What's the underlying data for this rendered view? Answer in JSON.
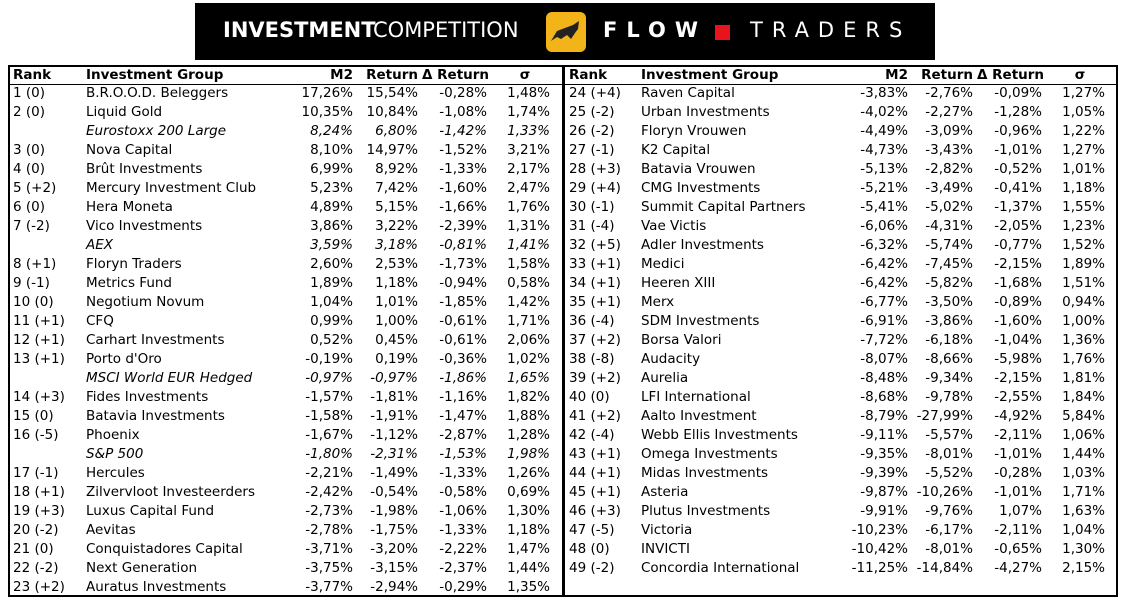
{
  "header": {
    "title_bold": "INVESTMENT",
    "title_regular": "COMPETITION",
    "brand_left": "FLOW",
    "brand_right": "TRADERS"
  },
  "tables": [
    {
      "header": [
        "Rank",
        "Investment Group",
        "M2",
        "Return",
        "Δ Return",
        "σ"
      ],
      "rows": [
        {
          "rank": "1 (0)",
          "group": "B.R.O.O.D. Beleggers",
          "m2": "17,26%",
          "ret": "15,54%",
          "dret": "-0,28%",
          "sigma": "1,48%"
        },
        {
          "rank": "2 (0)",
          "group": "Liquid Gold",
          "m2": "10,35%",
          "ret": "10,84%",
          "dret": "-1,08%",
          "sigma": "1,74%"
        },
        {
          "group": "Eurostoxx 200 Large",
          "m2": "8,24%",
          "ret": "6,80%",
          "dret": "-1,42%",
          "sigma": "1,33%",
          "benchmark": true
        },
        {
          "rank": "3 (0)",
          "group": "Nova Capital",
          "m2": "8,10%",
          "ret": "14,97%",
          "dret": "-1,52%",
          "sigma": "3,21%"
        },
        {
          "rank": "4 (0)",
          "group": "Brût Investments",
          "m2": "6,99%",
          "ret": "8,92%",
          "dret": "-1,33%",
          "sigma": "2,17%"
        },
        {
          "rank": "5 (+2)",
          "group": "Mercury Investment Club",
          "m2": "5,23%",
          "ret": "7,42%",
          "dret": "-1,60%",
          "sigma": "2,47%"
        },
        {
          "rank": "6 (0)",
          "group": "Hera Moneta",
          "m2": "4,89%",
          "ret": "5,15%",
          "dret": "-1,66%",
          "sigma": "1,76%"
        },
        {
          "rank": "7 (-2)",
          "group": "Vico Investments",
          "m2": "3,86%",
          "ret": "3,22%",
          "dret": "-2,39%",
          "sigma": "1,31%"
        },
        {
          "group": "AEX",
          "m2": "3,59%",
          "ret": "3,18%",
          "dret": "-0,81%",
          "sigma": "1,41%",
          "benchmark": true
        },
        {
          "rank": "8 (+1)",
          "group": "Floryn Traders",
          "m2": "2,60%",
          "ret": "2,53%",
          "dret": "-1,73%",
          "sigma": "1,58%"
        },
        {
          "rank": "9 (-1)",
          "group": "Metrics Fund",
          "m2": "1,89%",
          "ret": "1,18%",
          "dret": "-0,94%",
          "sigma": "0,58%"
        },
        {
          "rank": "10 (0)",
          "group": "Negotium Novum",
          "m2": "1,04%",
          "ret": "1,01%",
          "dret": "-1,85%",
          "sigma": "1,42%"
        },
        {
          "rank": "11 (+1)",
          "group": "CFQ",
          "m2": "0,99%",
          "ret": "1,00%",
          "dret": "-0,61%",
          "sigma": "1,71%"
        },
        {
          "rank": "12 (+1)",
          "group": "Carhart Investments",
          "m2": "0,52%",
          "ret": "0,45%",
          "dret": "-0,61%",
          "sigma": "2,06%"
        },
        {
          "rank": "13 (+1)",
          "group": "Porto d'Oro",
          "m2": "-0,19%",
          "ret": "0,19%",
          "dret": "-0,36%",
          "sigma": "1,02%"
        },
        {
          "group": "MSCI World EUR Hedged",
          "m2": "-0,97%",
          "ret": "-0,97%",
          "dret": "-1,86%",
          "sigma": "1,65%",
          "benchmark": true
        },
        {
          "rank": "14 (+3)",
          "group": "Fides Investments",
          "m2": "-1,57%",
          "ret": "-1,81%",
          "dret": "-1,16%",
          "sigma": "1,82%"
        },
        {
          "rank": "15 (0)",
          "group": "Batavia Investments",
          "m2": "-1,58%",
          "ret": "-1,91%",
          "dret": "-1,47%",
          "sigma": "1,88%"
        },
        {
          "rank": "16 (-5)",
          "group": "Phoenix",
          "m2": "-1,67%",
          "ret": "-1,12%",
          "dret": "-2,87%",
          "sigma": "1,28%"
        },
        {
          "group": "S&P 500",
          "m2": "-1,80%",
          "ret": "-2,31%",
          "dret": "-1,53%",
          "sigma": "1,98%",
          "benchmark": true
        },
        {
          "rank": "17 (-1)",
          "group": "Hercules",
          "m2": "-2,21%",
          "ret": "-1,49%",
          "dret": "-1,33%",
          "sigma": "1,26%"
        },
        {
          "rank": "18 (+1)",
          "group": "Zilvervloot Investeerders",
          "m2": "-2,42%",
          "ret": "-0,54%",
          "dret": "-0,58%",
          "sigma": "0,69%"
        },
        {
          "rank": "19 (+3)",
          "group": "Luxus Capital Fund",
          "m2": "-2,73%",
          "ret": "-1,98%",
          "dret": "-1,06%",
          "sigma": "1,30%"
        },
        {
          "rank": "20 (-2)",
          "group": "Aevitas",
          "m2": "-2,78%",
          "ret": "-1,75%",
          "dret": "-1,33%",
          "sigma": "1,18%"
        },
        {
          "rank": "21 (0)",
          "group": "Conquistadores Capital",
          "m2": "-3,71%",
          "ret": "-3,20%",
          "dret": "-2,22%",
          "sigma": "1,47%"
        },
        {
          "rank": "22 (-2)",
          "group": "Next Generation",
          "m2": "-3,75%",
          "ret": "-3,15%",
          "dret": "-2,37%",
          "sigma": "1,44%"
        },
        {
          "rank": "23 (+2)",
          "group": "Auratus Investments",
          "m2": "-3,77%",
          "ret": "-2,94%",
          "dret": "-0,29%",
          "sigma": "1,35%"
        }
      ]
    },
    {
      "header": [
        "Rank",
        "Investment Group",
        "M2",
        "Return",
        "Δ Return",
        "σ"
      ],
      "rows": [
        {
          "rank": "24 (+4)",
          "group": "Raven Capital",
          "m2": "-3,83%",
          "ret": "-2,76%",
          "dret": "-0,09%",
          "sigma": "1,27%"
        },
        {
          "rank": "25 (-2)",
          "group": "Urban Investments",
          "m2": "-4,02%",
          "ret": "-2,27%",
          "dret": "-1,28%",
          "sigma": "1,05%"
        },
        {
          "rank": "26 (-2)",
          "group": "Floryn Vrouwen",
          "m2": "-4,49%",
          "ret": "-3,09%",
          "dret": "-0,96%",
          "sigma": "1,22%"
        },
        {
          "rank": "27 (-1)",
          "group": "K2 Capital",
          "m2": "-4,73%",
          "ret": "-3,43%",
          "dret": "-1,01%",
          "sigma": "1,27%"
        },
        {
          "rank": "28 (+3)",
          "group": "Batavia Vrouwen",
          "m2": "-5,13%",
          "ret": "-2,82%",
          "dret": "-0,52%",
          "sigma": "1,01%"
        },
        {
          "rank": "29 (+4)",
          "group": "CMG Investments",
          "m2": "-5,21%",
          "ret": "-3,49%",
          "dret": "-0,41%",
          "sigma": "1,18%"
        },
        {
          "rank": "30 (-1)",
          "group": "Summit Capital Partners",
          "m2": "-5,41%",
          "ret": "-5,02%",
          "dret": "-1,37%",
          "sigma": "1,55%"
        },
        {
          "rank": "31 (-4)",
          "group": "Vae Victis",
          "m2": "-6,06%",
          "ret": "-4,31%",
          "dret": "-2,05%",
          "sigma": "1,23%"
        },
        {
          "rank": "32 (+5)",
          "group": "Adler Investments",
          "m2": "-6,32%",
          "ret": "-5,74%",
          "dret": "-0,77%",
          "sigma": "1,52%"
        },
        {
          "rank": "33 (+1)",
          "group": "Medici",
          "m2": "-6,42%",
          "ret": "-7,45%",
          "dret": "-2,15%",
          "sigma": "1,89%"
        },
        {
          "rank": "34 (+1)",
          "group": "Heeren XIII",
          "m2": "-6,42%",
          "ret": "-5,82%",
          "dret": "-1,68%",
          "sigma": "1,51%"
        },
        {
          "rank": "35 (+1)",
          "group": "Merx",
          "m2": "-6,77%",
          "ret": "-3,50%",
          "dret": "-0,89%",
          "sigma": "0,94%"
        },
        {
          "rank": "36 (-4)",
          "group": "SDM Investments",
          "m2": "-6,91%",
          "ret": "-3,86%",
          "dret": "-1,60%",
          "sigma": "1,00%"
        },
        {
          "rank": "37 (+2)",
          "group": "Borsa Valori",
          "m2": "-7,72%",
          "ret": "-6,18%",
          "dret": "-1,04%",
          "sigma": "1,36%"
        },
        {
          "rank": "38 (-8)",
          "group": "Audacity",
          "m2": "-8,07%",
          "ret": "-8,66%",
          "dret": "-5,98%",
          "sigma": "1,76%"
        },
        {
          "rank": "39 (+2)",
          "group": "Aurelia",
          "m2": "-8,48%",
          "ret": "-9,34%",
          "dret": "-2,15%",
          "sigma": "1,81%"
        },
        {
          "rank": "40 (0)",
          "group": "LFI International",
          "m2": "-8,68%",
          "ret": "-9,78%",
          "dret": "-2,55%",
          "sigma": "1,84%"
        },
        {
          "rank": "41 (+2)",
          "group": "Aalto Investment",
          "m2": "-8,79%",
          "ret": "-27,99%",
          "dret": "-4,92%",
          "sigma": "5,84%"
        },
        {
          "rank": "42 (-4)",
          "group": "Webb Ellis Investments",
          "m2": "-9,11%",
          "ret": "-5,57%",
          "dret": "-2,11%",
          "sigma": "1,06%"
        },
        {
          "rank": "43 (+1)",
          "group": "Omega Investments",
          "m2": "-9,35%",
          "ret": "-8,01%",
          "dret": "-1,01%",
          "sigma": "1,44%"
        },
        {
          "rank": "44 (+1)",
          "group": "Midas Investments",
          "m2": "-9,39%",
          "ret": "-5,52%",
          "dret": "-0,28%",
          "sigma": "1,03%"
        },
        {
          "rank": "45 (+1)",
          "group": "Asteria",
          "m2": "-9,87%",
          "ret": "-10,26%",
          "dret": "-1,01%",
          "sigma": "1,71%"
        },
        {
          "rank": "46 (+3)",
          "group": "Plutus Investments",
          "m2": "-9,91%",
          "ret": "-9,76%",
          "dret": "1,07%",
          "sigma": "1,63%"
        },
        {
          "rank": "47 (-5)",
          "group": "Victoria",
          "m2": "-10,23%",
          "ret": "-6,17%",
          "dret": "-2,11%",
          "sigma": "1,04%"
        },
        {
          "rank": "48 (0)",
          "group": "INVICTI",
          "m2": "-10,42%",
          "ret": "-8,01%",
          "dret": "-0,65%",
          "sigma": "1,30%"
        },
        {
          "rank": "49 (-2)",
          "group": "Concordia International",
          "m2": "-11,25%",
          "ret": "-14,84%",
          "dret": "-4,27%",
          "sigma": "2,15%"
        }
      ]
    }
  ]
}
